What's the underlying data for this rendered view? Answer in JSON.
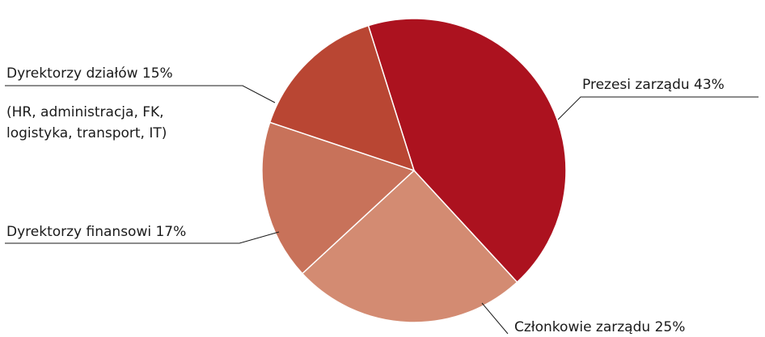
{
  "chart_data": {
    "type": "pie",
    "slices": [
      {
        "label": "Prezesi zarządu",
        "value": 43,
        "display": "Prezesi zarządu 43%",
        "color": "#ac121f"
      },
      {
        "label": "Członkowie zarządu",
        "value": 25,
        "display": "Członkowie zarządu 25%",
        "color": "#d38b72"
      },
      {
        "label": "Dyrektorzy finansowi",
        "value": 17,
        "display": "Dyrektorzy finansowi 17%",
        "color": "#c8725a"
      },
      {
        "label": "Dyrektorzy działów",
        "value": 15,
        "display": "Dyrektorzy działów 15%",
        "color": "#b94633",
        "note": [
          "(HR, administracja, FK,",
          "logistyka, transport, IT)"
        ]
      }
    ],
    "unit": "%"
  }
}
